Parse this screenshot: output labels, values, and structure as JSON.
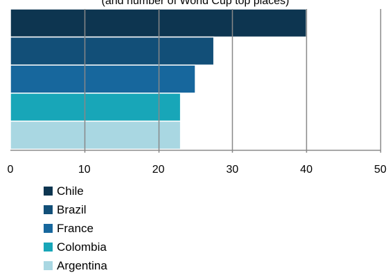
{
  "chart_data": {
    "type": "bar",
    "orientation": "horizontal",
    "subtitle": "(and number of World Cup top places)",
    "categories": [
      "Chile",
      "Brazil",
      "France",
      "Colombia",
      "Argentina"
    ],
    "values": [
      40,
      27.5,
      25,
      23,
      23
    ],
    "colors": [
      "#0d3550",
      "#124f78",
      "#17679d",
      "#18a6b8",
      "#a9d7e2"
    ],
    "xlim": [
      0,
      50
    ],
    "xticks": [
      "0",
      "10",
      "20",
      "30",
      "40",
      "50"
    ],
    "grid": true,
    "legend_position": "bottom-left"
  }
}
